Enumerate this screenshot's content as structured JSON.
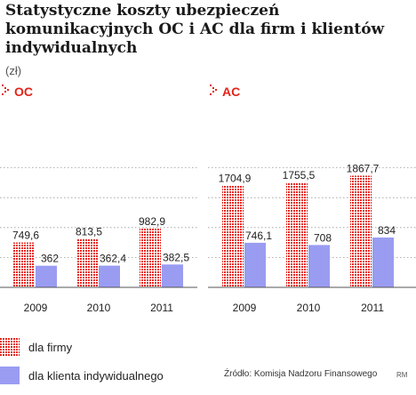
{
  "title": "Statystyczne koszty ubezpieczeń komunikacyjnych OC i AC dla firm i klientów indywidualnych",
  "unit": "(zł)",
  "legend": [
    {
      "label": "dla firmy",
      "color": "#e2231a",
      "pattern": "dots"
    },
    {
      "label": "dla klienta indywidualnego",
      "color": "#9a9cf2",
      "pattern": "solid"
    }
  ],
  "source": "Źródło: Komisja Nadzoru Finansowego",
  "author": "RM",
  "chart_data": [
    {
      "type": "bar",
      "title": "OC",
      "categories": [
        "2009",
        "2010",
        "2011"
      ],
      "series": [
        {
          "name": "dla firmy",
          "values": [
            749.6,
            813.5,
            982.9
          ],
          "labels": [
            "749,6",
            "813,5",
            "982,9"
          ]
        },
        {
          "name": "dla klienta indywidualnego",
          "values": [
            362,
            362.4,
            382.5
          ],
          "labels": [
            "362",
            "362,4",
            "382,5"
          ]
        }
      ],
      "ylim": [
        0,
        2200
      ],
      "grid": true
    },
    {
      "type": "bar",
      "title": "AC",
      "categories": [
        "2009",
        "2010",
        "2011"
      ],
      "series": [
        {
          "name": "dla firmy",
          "values": [
            1704.9,
            1755.5,
            1867.7
          ],
          "labels": [
            "1704,9",
            "1755,5",
            "1867,7"
          ]
        },
        {
          "name": "dla klienta indywidualnego",
          "values": [
            746.1,
            708,
            834
          ],
          "labels": [
            "746,1",
            "708",
            "834"
          ]
        }
      ],
      "ylim": [
        0,
        2200
      ],
      "grid": true
    }
  ]
}
